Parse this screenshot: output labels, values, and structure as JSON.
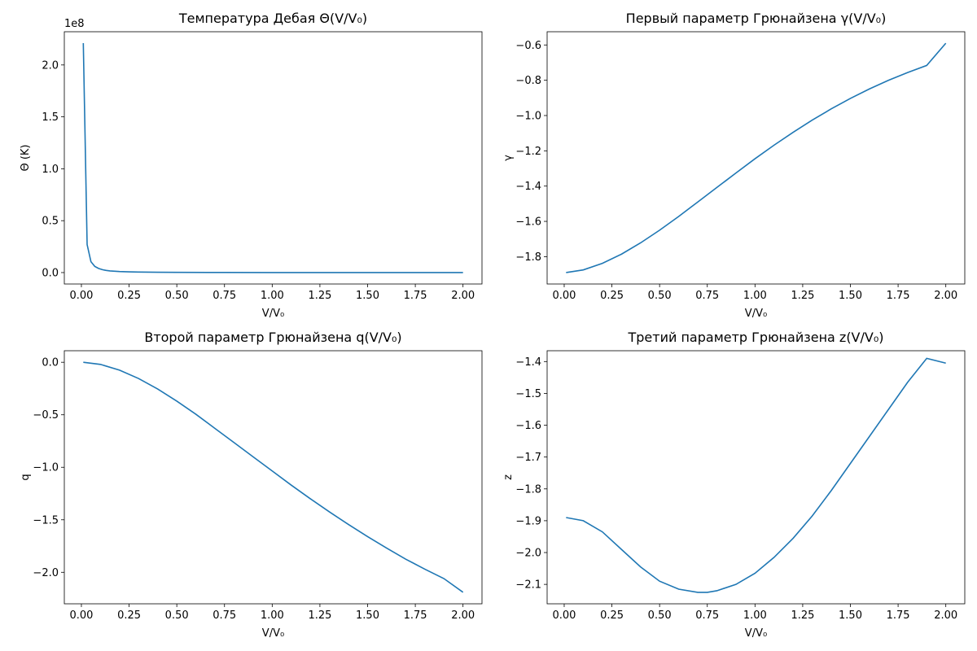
{
  "chart_data": [
    {
      "type": "line",
      "title": "Температура Дебая Θ(V/V₀)",
      "xlabel": "V/V₀",
      "ylabel": "Θ (K)",
      "offset_label": "1e8",
      "xlim": [
        -0.0895,
        2.0995
      ],
      "ylim": [
        -11000000.0,
        232000000.0
      ],
      "xticks": [
        0.0,
        0.25,
        0.5,
        0.75,
        1.0,
        1.25,
        1.5,
        1.75,
        2.0
      ],
      "xtick_labels": [
        "0.00",
        "0.25",
        "0.50",
        "0.75",
        "1.00",
        "1.25",
        "1.50",
        "1.75",
        "2.00"
      ],
      "yticks": [
        0,
        50000000.0,
        100000000.0,
        150000000.0,
        200000000.0
      ],
      "ytick_labels": [
        "0.0",
        "0.5",
        "1.0",
        "1.5",
        "2.0"
      ],
      "grid": false,
      "series": [
        {
          "x": [
            0.01,
            0.03,
            0.05,
            0.07,
            0.09,
            0.11,
            0.13,
            0.15,
            0.2,
            0.25,
            0.3,
            0.4,
            0.5,
            0.75,
            1.0,
            1.25,
            1.5,
            1.75,
            2.0
          ],
          "y": [
            221000000,
            27000000,
            10500000,
            6000000,
            4000000,
            2800000,
            2100000,
            1600000,
            1000000,
            700000,
            500000,
            300000,
            200000,
            100000,
            60000,
            40000,
            30000,
            20000,
            15000
          ]
        }
      ]
    },
    {
      "type": "line",
      "title": "Первый параметр Грюнайзена γ(V/V₀)",
      "xlabel": "V/V₀",
      "ylabel": "γ",
      "xlim": [
        -0.0895,
        2.0995
      ],
      "ylim": [
        -1.955,
        -0.525
      ],
      "xticks": [
        0.0,
        0.25,
        0.5,
        0.75,
        1.0,
        1.25,
        1.5,
        1.75,
        2.0
      ],
      "xtick_labels": [
        "0.00",
        "0.25",
        "0.50",
        "0.75",
        "1.00",
        "1.25",
        "1.50",
        "1.75",
        "2.00"
      ],
      "yticks": [
        -1.8,
        -1.6,
        -1.4,
        -1.2,
        -1.0,
        -0.8,
        -0.6
      ],
      "ytick_labels": [
        "−1.8",
        "−1.6",
        "−1.4",
        "−1.2",
        "−1.0",
        "−0.8",
        "−0.6"
      ],
      "grid": false,
      "series": [
        {
          "x": [
            0.01,
            0.1,
            0.2,
            0.3,
            0.4,
            0.5,
            0.6,
            0.7,
            0.8,
            0.9,
            1.0,
            1.1,
            1.2,
            1.3,
            1.4,
            1.5,
            1.6,
            1.7,
            1.8,
            1.9,
            2.0
          ],
          "y": [
            -1.89,
            -1.875,
            -1.838,
            -1.786,
            -1.722,
            -1.65,
            -1.572,
            -1.49,
            -1.408,
            -1.326,
            -1.245,
            -1.168,
            -1.095,
            -1.026,
            -0.962,
            -0.903,
            -0.849,
            -0.8,
            -0.756,
            -0.716,
            -0.59
          ]
        }
      ]
    },
    {
      "type": "line",
      "title": "Второй параметр Грюнайзена q(V/V₀)",
      "xlabel": "V/V₀",
      "ylabel": "q",
      "xlim": [
        -0.0895,
        2.0995
      ],
      "ylim": [
        -2.3,
        0.11
      ],
      "xticks": [
        0.0,
        0.25,
        0.5,
        0.75,
        1.0,
        1.25,
        1.5,
        1.75,
        2.0
      ],
      "xtick_labels": [
        "0.00",
        "0.25",
        "0.50",
        "0.75",
        "1.00",
        "1.25",
        "1.50",
        "1.75",
        "2.00"
      ],
      "yticks": [
        -2.0,
        -1.5,
        -1.0,
        -0.5,
        0.0
      ],
      "ytick_labels": [
        "−2.0",
        "−1.5",
        "−1.0",
        "−0.5",
        "0.0"
      ],
      "grid": false,
      "series": [
        {
          "x": [
            0.01,
            0.1,
            0.2,
            0.3,
            0.4,
            0.5,
            0.6,
            0.7,
            0.8,
            0.9,
            1.0,
            1.1,
            1.2,
            1.3,
            1.4,
            1.5,
            1.6,
            1.7,
            1.8,
            1.9,
            2.0
          ],
          "y": [
            0.0,
            -0.02,
            -0.075,
            -0.155,
            -0.255,
            -0.37,
            -0.495,
            -0.63,
            -0.765,
            -0.9,
            -1.035,
            -1.17,
            -1.3,
            -1.425,
            -1.545,
            -1.66,
            -1.77,
            -1.875,
            -1.97,
            -2.06,
            -2.19
          ]
        }
      ]
    },
    {
      "type": "line",
      "title": "Третий параметр Грюнайзена z(V/V₀)",
      "xlabel": "V/V₀",
      "ylabel": "z",
      "xlim": [
        -0.0895,
        2.0995
      ],
      "ylim": [
        -2.161,
        -1.366
      ],
      "xticks": [
        0.0,
        0.25,
        0.5,
        0.75,
        1.0,
        1.25,
        1.5,
        1.75,
        2.0
      ],
      "xtick_labels": [
        "0.00",
        "0.25",
        "0.50",
        "0.75",
        "1.00",
        "1.25",
        "1.50",
        "1.75",
        "2.00"
      ],
      "yticks": [
        -2.1,
        -2.0,
        -1.9,
        -1.8,
        -1.7,
        -1.6,
        -1.5,
        -1.4
      ],
      "ytick_labels": [
        "−2.1",
        "−2.0",
        "−1.9",
        "−1.8",
        "−1.7",
        "−1.6",
        "−1.5",
        "−1.4"
      ],
      "grid": false,
      "series": [
        {
          "x": [
            0.01,
            0.1,
            0.2,
            0.3,
            0.4,
            0.5,
            0.6,
            0.7,
            0.75,
            0.8,
            0.9,
            1.0,
            1.1,
            1.2,
            1.3,
            1.4,
            1.5,
            1.6,
            1.7,
            1.8,
            1.9,
            2.0
          ],
          "y": [
            -1.89,
            -1.9,
            -1.935,
            -1.99,
            -2.045,
            -2.09,
            -2.115,
            -2.125,
            -2.125,
            -2.12,
            -2.1,
            -2.065,
            -2.015,
            -1.955,
            -1.885,
            -1.805,
            -1.72,
            -1.635,
            -1.55,
            -1.465,
            -1.39,
            -1.405
          ]
        }
      ]
    }
  ]
}
